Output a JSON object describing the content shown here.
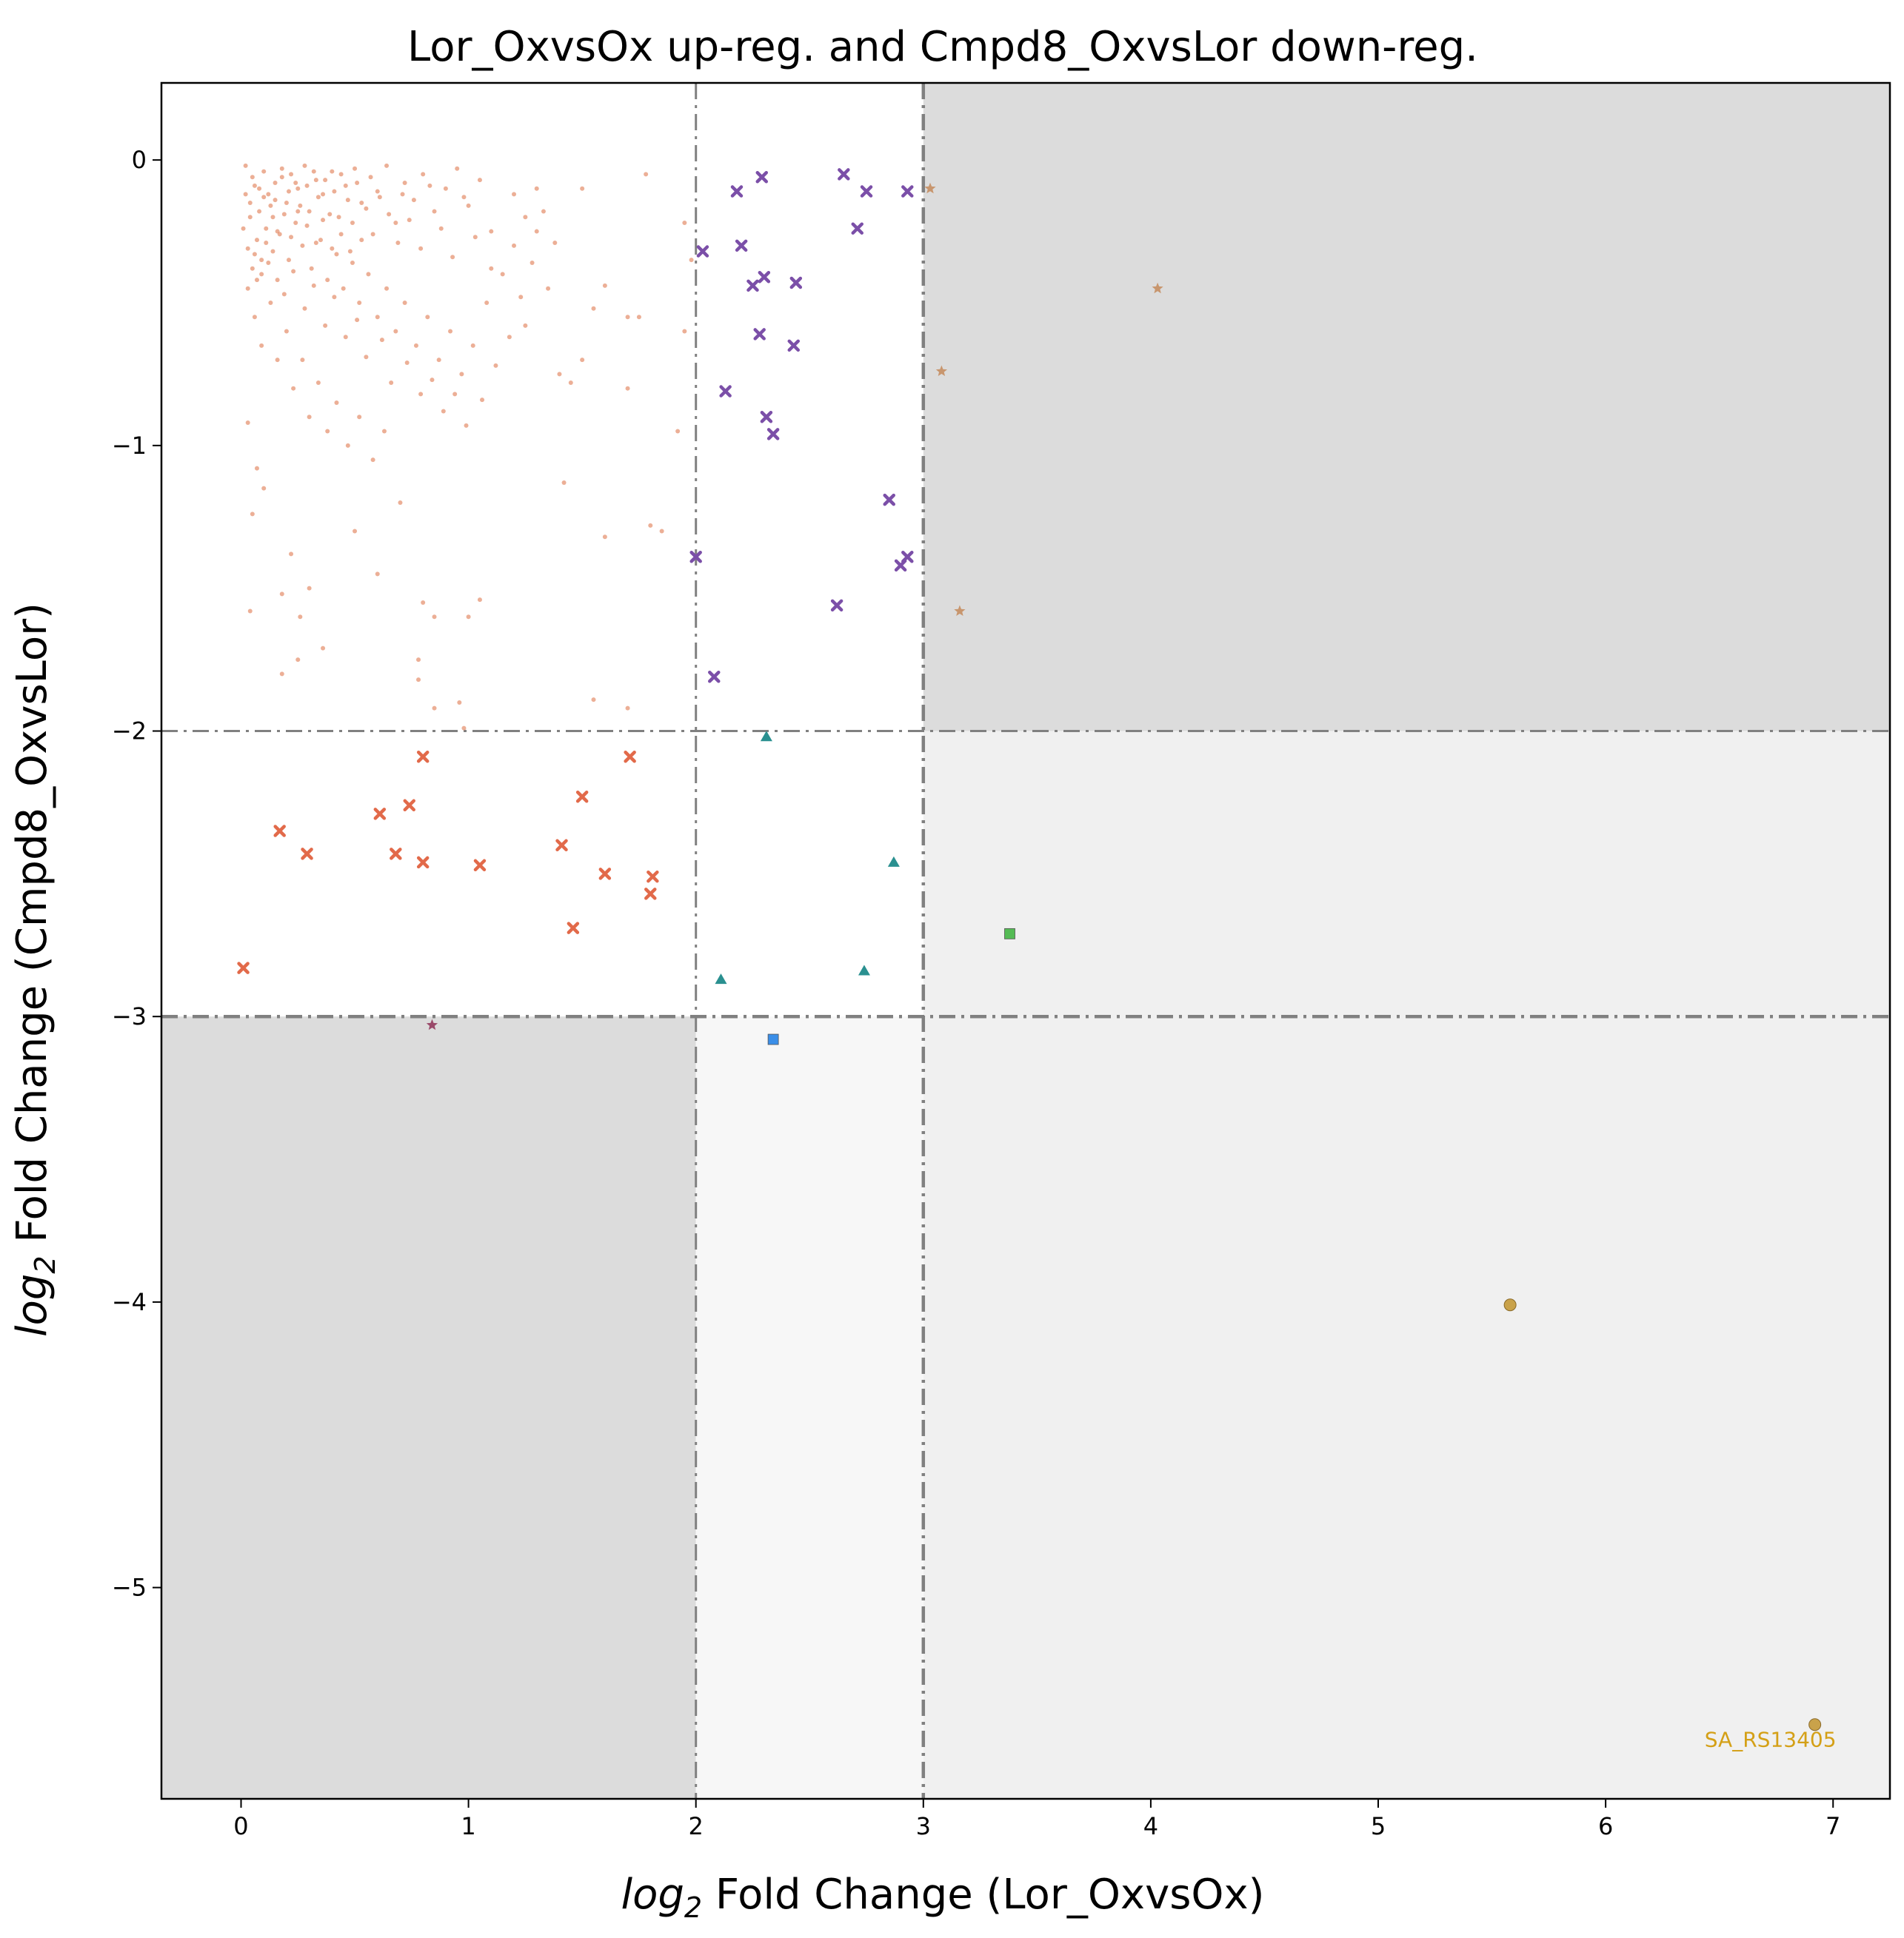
{
  "chart_data": {
    "type": "scatter",
    "title": "Lor_OxvsOx up-reg. and Cmpd8_OxvsLor down-reg.",
    "xlabel_italic": "log",
    "xlabel_sub": "2",
    "xlabel_rest": " Fold Change (Lor_OxvsOx)",
    "ylabel_italic": "log",
    "ylabel_sub": "2",
    "ylabel_rest": " Fold Change (Cmpd8_OxvsLor)",
    "xlim": [
      -0.35,
      7.25
    ],
    "ylim": [
      -5.74,
      0.27
    ],
    "xticks": [
      0,
      1,
      2,
      3,
      4,
      5,
      6,
      7
    ],
    "yticks": [
      0,
      -1,
      -2,
      -3,
      -4,
      -5
    ],
    "xtick_labels": [
      "0",
      "1",
      "2",
      "3",
      "4",
      "5",
      "6",
      "7"
    ],
    "ytick_labels": [
      "0",
      "−1",
      "−2",
      "−3",
      "−4",
      "−5"
    ],
    "thresholds": {
      "x": [
        2,
        3
      ],
      "y": [
        -2,
        -3
      ]
    },
    "regions": [
      {
        "x": [
          3,
          7.25
        ],
        "y": [
          -2,
          0.27
        ],
        "color": "#dcdcdc"
      },
      {
        "x": [
          -0.35,
          2
        ],
        "y": [
          -5.74,
          -3
        ],
        "color": "#dcdcdc"
      },
      {
        "x": [
          3,
          7.25
        ],
        "y": [
          -5.74,
          -2
        ],
        "color": "#f0f0f0"
      },
      {
        "x": [
          2,
          3
        ],
        "y": [
          -5.74,
          -3
        ],
        "color": "#f7f7f7"
      }
    ],
    "grid": false,
    "series": [
      {
        "marker": "dot",
        "color": "#e07a50",
        "points": [
          [
            0.02,
            -0.02
          ],
          [
            0.05,
            -0.06
          ],
          [
            0.08,
            -0.1
          ],
          [
            0.1,
            -0.04
          ],
          [
            0.12,
            -0.12
          ],
          [
            0.15,
            -0.08
          ],
          [
            0.18,
            -0.03
          ],
          [
            0.2,
            -0.15
          ],
          [
            0.22,
            -0.05
          ],
          [
            0.25,
            -0.1
          ],
          [
            0.28,
            -0.02
          ],
          [
            0.3,
            -0.18
          ],
          [
            0.33,
            -0.07
          ],
          [
            0.36,
            -0.12
          ],
          [
            0.4,
            -0.04
          ],
          [
            0.43,
            -0.2
          ],
          [
            0.46,
            -0.09
          ],
          [
            0.5,
            -0.03
          ],
          [
            0.53,
            -0.15
          ],
          [
            0.57,
            -0.06
          ],
          [
            0.6,
            -0.11
          ],
          [
            0.64,
            -0.02
          ],
          [
            0.68,
            -0.22
          ],
          [
            0.72,
            -0.08
          ],
          [
            0.76,
            -0.14
          ],
          [
            0.8,
            -0.05
          ],
          [
            0.85,
            -0.18
          ],
          [
            0.9,
            -0.1
          ],
          [
            0.95,
            -0.03
          ],
          [
            1.0,
            -0.16
          ],
          [
            1.05,
            -0.07
          ],
          [
            1.1,
            -0.25
          ],
          [
            0.04,
            -0.2
          ],
          [
            0.07,
            -0.28
          ],
          [
            0.11,
            -0.24
          ],
          [
            0.14,
            -0.32
          ],
          [
            0.17,
            -0.26
          ],
          [
            0.21,
            -0.35
          ],
          [
            0.24,
            -0.22
          ],
          [
            0.27,
            -0.3
          ],
          [
            0.31,
            -0.38
          ],
          [
            0.35,
            -0.28
          ],
          [
            0.38,
            -0.42
          ],
          [
            0.42,
            -0.33
          ],
          [
            0.45,
            -0.45
          ],
          [
            0.49,
            -0.36
          ],
          [
            0.52,
            -0.5
          ],
          [
            0.56,
            -0.4
          ],
          [
            0.6,
            -0.55
          ],
          [
            0.64,
            -0.45
          ],
          [
            0.68,
            -0.6
          ],
          [
            0.72,
            -0.5
          ],
          [
            0.77,
            -0.65
          ],
          [
            0.82,
            -0.55
          ],
          [
            0.87,
            -0.7
          ],
          [
            0.92,
            -0.6
          ],
          [
            0.97,
            -0.75
          ],
          [
            1.02,
            -0.65
          ],
          [
            1.08,
            -0.5
          ],
          [
            1.15,
            -0.4
          ],
          [
            1.2,
            -0.3
          ],
          [
            1.25,
            -0.2
          ],
          [
            1.3,
            -0.1
          ],
          [
            1.35,
            -0.45
          ],
          [
            0.03,
            -0.45
          ],
          [
            0.06,
            -0.55
          ],
          [
            0.09,
            -0.65
          ],
          [
            0.13,
            -0.5
          ],
          [
            0.16,
            -0.7
          ],
          [
            0.2,
            -0.6
          ],
          [
            0.23,
            -0.8
          ],
          [
            0.27,
            -0.7
          ],
          [
            0.3,
            -0.9
          ],
          [
            0.34,
            -0.78
          ],
          [
            0.38,
            -0.95
          ],
          [
            0.42,
            -0.85
          ],
          [
            0.47,
            -1.0
          ],
          [
            0.52,
            -0.9
          ],
          [
            0.58,
            -1.05
          ],
          [
            0.63,
            -0.95
          ],
          [
            0.03,
            -0.92
          ],
          [
            0.05,
            -1.24
          ],
          [
            0.07,
            -1.08
          ],
          [
            0.1,
            -1.15
          ],
          [
            0.18,
            -1.52
          ],
          [
            0.22,
            -1.38
          ],
          [
            0.26,
            -1.6
          ],
          [
            0.3,
            -1.5
          ],
          [
            0.04,
            -1.58
          ],
          [
            0.18,
            -1.8
          ],
          [
            0.25,
            -1.75
          ],
          [
            0.36,
            -1.71
          ],
          [
            0.5,
            -1.3
          ],
          [
            0.6,
            -1.45
          ],
          [
            0.7,
            -1.2
          ],
          [
            0.78,
            -1.75
          ],
          [
            0.8,
            -1.55
          ],
          [
            0.85,
            -1.6
          ],
          [
            0.96,
            -1.9
          ],
          [
            1.0,
            -1.6
          ],
          [
            1.05,
            -1.54
          ],
          [
            0.98,
            -1.99
          ],
          [
            0.78,
            -1.82
          ],
          [
            0.85,
            -1.92
          ],
          [
            1.4,
            -0.75
          ],
          [
            1.45,
            -0.78
          ],
          [
            1.5,
            -0.7
          ],
          [
            1.42,
            -1.13
          ],
          [
            1.6,
            -1.32
          ],
          [
            1.55,
            -0.52
          ],
          [
            1.6,
            -0.44
          ],
          [
            1.7,
            -0.55
          ],
          [
            1.7,
            -1.92
          ],
          [
            1.75,
            -0.55
          ],
          [
            1.7,
            -0.8
          ],
          [
            1.85,
            -1.3
          ],
          [
            1.8,
            -1.28
          ],
          [
            1.92,
            -0.95
          ],
          [
            1.95,
            -0.22
          ],
          [
            1.95,
            -0.6
          ],
          [
            1.55,
            -1.89
          ],
          [
            1.98,
            -0.35
          ],
          [
            1.78,
            -0.05
          ],
          [
            1.5,
            -0.1
          ],
          [
            1.3,
            -0.25
          ],
          [
            1.2,
            -0.12
          ],
          [
            1.1,
            -0.38
          ],
          [
            1.25,
            -0.58
          ],
          [
            0.15,
            -0.14
          ],
          [
            0.18,
            -0.06
          ],
          [
            0.21,
            -0.11
          ],
          [
            0.24,
            -0.08
          ],
          [
            0.26,
            -0.16
          ],
          [
            0.29,
            -0.09
          ],
          [
            0.32,
            -0.04
          ],
          [
            0.34,
            -0.13
          ],
          [
            0.37,
            -0.07
          ],
          [
            0.39,
            -0.19
          ],
          [
            0.41,
            -0.11
          ],
          [
            0.44,
            -0.05
          ],
          [
            0.47,
            -0.14
          ],
          [
            0.49,
            -0.22
          ],
          [
            0.51,
            -0.08
          ],
          [
            0.55,
            -0.17
          ],
          [
            0.58,
            -0.26
          ],
          [
            0.61,
            -0.13
          ],
          [
            0.65,
            -0.19
          ],
          [
            0.69,
            -0.29
          ],
          [
            0.71,
            -0.12
          ],
          [
            0.74,
            -0.21
          ],
          [
            0.79,
            -0.31
          ],
          [
            0.83,
            -0.09
          ],
          [
            0.88,
            -0.24
          ],
          [
            0.93,
            -0.34
          ],
          [
            0.98,
            -0.13
          ],
          [
            1.03,
            -0.27
          ],
          [
            0.06,
            -0.33
          ],
          [
            0.09,
            -0.4
          ],
          [
            0.12,
            -0.36
          ],
          [
            0.16,
            -0.42
          ],
          [
            0.19,
            -0.47
          ],
          [
            0.23,
            -0.39
          ],
          [
            0.28,
            -0.52
          ],
          [
            0.32,
            -0.44
          ],
          [
            0.37,
            -0.58
          ],
          [
            0.41,
            -0.48
          ],
          [
            0.46,
            -0.62
          ],
          [
            0.51,
            -0.56
          ],
          [
            0.55,
            -0.69
          ],
          [
            0.62,
            -0.63
          ],
          [
            0.66,
            -0.78
          ],
          [
            0.73,
            -0.71
          ],
          [
            0.79,
            -0.82
          ],
          [
            0.84,
            -0.77
          ],
          [
            0.89,
            -0.88
          ],
          [
            0.94,
            -0.82
          ],
          [
            0.99,
            -0.93
          ],
          [
            1.06,
            -0.84
          ],
          [
            1.12,
            -0.72
          ],
          [
            1.18,
            -0.62
          ],
          [
            1.23,
            -0.48
          ],
          [
            1.28,
            -0.36
          ],
          [
            1.33,
            -0.18
          ],
          [
            1.38,
            -0.29
          ],
          [
            0.02,
            -0.12
          ],
          [
            0.04,
            -0.15
          ],
          [
            0.06,
            -0.09
          ],
          [
            0.08,
            -0.18
          ],
          [
            0.1,
            -0.13
          ],
          [
            0.13,
            -0.16
          ],
          [
            0.01,
            -0.24
          ],
          [
            0.03,
            -0.31
          ],
          [
            0.05,
            -0.38
          ],
          [
            0.07,
            -0.42
          ],
          [
            0.09,
            -0.35
          ],
          [
            0.11,
            -0.29
          ],
          [
            0.14,
            -0.2
          ],
          [
            0.16,
            -0.25
          ],
          [
            0.19,
            -0.19
          ],
          [
            0.22,
            -0.27
          ],
          [
            0.25,
            -0.18
          ],
          [
            0.29,
            -0.23
          ],
          [
            0.33,
            -0.29
          ],
          [
            0.36,
            -0.21
          ],
          [
            0.4,
            -0.31
          ],
          [
            0.44,
            -0.26
          ],
          [
            0.48,
            -0.32
          ],
          [
            0.53,
            -0.28
          ]
        ]
      },
      {
        "marker": "x",
        "color": "#7b4fa8",
        "points": [
          [
            2.03,
            -0.32
          ],
          [
            2.18,
            -0.11
          ],
          [
            2.2,
            -0.3
          ],
          [
            2.25,
            -0.44
          ],
          [
            2.29,
            -0.06
          ],
          [
            2.3,
            -0.41
          ],
          [
            2.28,
            -0.61
          ],
          [
            2.43,
            -0.65
          ],
          [
            2.44,
            -0.43
          ],
          [
            2.13,
            -0.81
          ],
          [
            2.31,
            -0.9
          ],
          [
            2.34,
            -0.96
          ],
          [
            2.65,
            -0.05
          ],
          [
            2.71,
            -0.24
          ],
          [
            2.75,
            -0.11
          ],
          [
            2.93,
            -0.11
          ],
          [
            2.85,
            -1.19
          ],
          [
            2.9,
            -1.42
          ],
          [
            2.93,
            -1.39
          ],
          [
            2.62,
            -1.56
          ],
          [
            2.0,
            -1.39
          ],
          [
            2.08,
            -1.81
          ]
        ]
      },
      {
        "marker": "x",
        "color": "#e26a4a",
        "points": [
          [
            0.01,
            -2.83
          ],
          [
            0.17,
            -2.35
          ],
          [
            0.29,
            -2.43
          ],
          [
            0.61,
            -2.29
          ],
          [
            0.68,
            -2.43
          ],
          [
            0.74,
            -2.26
          ],
          [
            0.8,
            -2.09
          ],
          [
            0.8,
            -2.46
          ],
          [
            1.05,
            -2.47
          ],
          [
            1.41,
            -2.4
          ],
          [
            1.46,
            -2.69
          ],
          [
            1.5,
            -2.23
          ],
          [
            1.6,
            -2.5
          ],
          [
            1.71,
            -2.09
          ],
          [
            1.8,
            -2.57
          ],
          [
            1.81,
            -2.51
          ]
        ]
      },
      {
        "marker": "triangle",
        "color": "#2a9090",
        "points": [
          [
            2.31,
            -2.02
          ],
          [
            2.11,
            -2.87
          ],
          [
            2.74,
            -2.84
          ],
          [
            2.87,
            -2.46
          ]
        ]
      },
      {
        "marker": "star",
        "color": "#c8966e",
        "points": [
          [
            3.03,
            -0.1
          ],
          [
            4.03,
            -0.45
          ],
          [
            3.08,
            -0.74
          ],
          [
            3.16,
            -1.58
          ]
        ]
      },
      {
        "marker": "star",
        "color": "#9a4a6a",
        "points": [
          [
            0.84,
            -3.03
          ]
        ]
      },
      {
        "marker": "square",
        "color": "#55bb55",
        "points": [
          [
            3.38,
            -2.71
          ]
        ]
      },
      {
        "marker": "square",
        "color": "#3a8ee8",
        "points": [
          [
            2.34,
            -3.08
          ]
        ]
      },
      {
        "marker": "circle",
        "color": "#c9a24a",
        "points": [
          [
            5.58,
            -4.01
          ],
          [
            6.92,
            -5.48
          ]
        ]
      }
    ],
    "annotations": [
      {
        "text": "SA_RS13405",
        "x": 6.92,
        "y": -5.48,
        "color": "#d4a017"
      }
    ]
  }
}
